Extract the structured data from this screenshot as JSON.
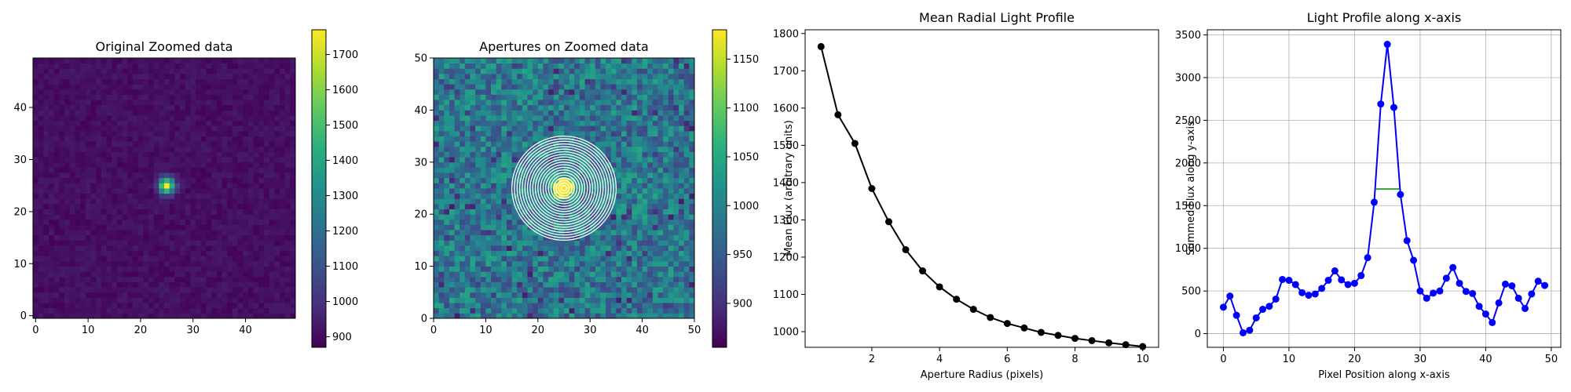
{
  "chart_data": [
    {
      "type": "heatmap",
      "title": "Original Zoomed data",
      "xlabel": "",
      "ylabel": "",
      "xlim": [
        -0.5,
        49.5
      ],
      "ylim": [
        -0.5,
        49.5
      ],
      "xticks": [
        0,
        10,
        20,
        30,
        40
      ],
      "yticks": [
        0,
        10,
        20,
        30,
        40
      ],
      "grid": false,
      "colormap": "viridis",
      "source_center": [
        25,
        25
      ],
      "source_peak": 1765,
      "background_level": 905,
      "colorbar": {
        "vmin": 870,
        "vmax": 1770,
        "ticks": [
          900,
          1000,
          1100,
          1200,
          1300,
          1400,
          1500,
          1600,
          1700
        ]
      }
    },
    {
      "type": "heatmap",
      "title": "Apertures on Zoomed data",
      "xlabel": "",
      "ylabel": "",
      "xlim": [
        0,
        50
      ],
      "ylim": [
        0,
        50
      ],
      "xticks": [
        0,
        10,
        20,
        30,
        40,
        50
      ],
      "yticks": [
        0,
        10,
        20,
        30,
        40,
        50
      ],
      "grid": false,
      "colormap": "viridis",
      "aperture_center": [
        25,
        25
      ],
      "aperture_radii": [
        0.5,
        1,
        1.5,
        2,
        2.5,
        3,
        3.5,
        4,
        4.5,
        5,
        5.5,
        6,
        6.5,
        7,
        7.5,
        8,
        8.5,
        9,
        9.5,
        10
      ],
      "colorbar": {
        "vmin": 855,
        "vmax": 1180,
        "ticks": [
          900,
          950,
          1000,
          1050,
          1100,
          1150
        ]
      }
    },
    {
      "type": "line",
      "title": "Mean Radial Light Profile",
      "xlabel": "Aperture Radius (pixels)",
      "ylabel": "Mean Flux (arbitrary units)",
      "x": [
        0.5,
        1,
        1.5,
        2,
        2.5,
        3,
        3.5,
        4,
        4.5,
        5,
        5.5,
        6,
        6.5,
        7,
        7.5,
        8,
        8.5,
        9,
        9.5,
        10
      ],
      "y": [
        1765,
        1582,
        1505,
        1384,
        1295,
        1220,
        1163,
        1120,
        1087,
        1060,
        1038,
        1022,
        1010,
        998,
        990,
        982,
        976,
        970,
        965,
        960
      ],
      "xlim": [
        0.03,
        10.47
      ],
      "ylim": [
        958,
        1810
      ],
      "xticks": [
        2,
        4,
        6,
        8,
        10
      ],
      "yticks": [
        1000,
        1100,
        1200,
        1300,
        1400,
        1500,
        1600,
        1700,
        1800
      ],
      "grid": false,
      "color": "#000000"
    },
    {
      "type": "line",
      "title": "Light Profile along x-axis",
      "xlabel": "Pixel Position along x-axis",
      "ylabel": "Summed Flux along y-axis",
      "x": [
        0,
        1,
        2,
        3,
        4,
        5,
        6,
        7,
        8,
        9,
        10,
        11,
        12,
        13,
        14,
        15,
        16,
        17,
        18,
        19,
        20,
        21,
        22,
        23,
        24,
        25,
        26,
        27,
        28,
        29,
        30,
        31,
        32,
        33,
        34,
        35,
        36,
        37,
        38,
        39,
        40,
        41,
        42,
        43,
        44,
        45,
        46,
        47,
        48,
        49
      ],
      "y": [
        310,
        440,
        215,
        10,
        40,
        185,
        285,
        320,
        405,
        635,
        625,
        575,
        480,
        450,
        465,
        530,
        625,
        735,
        630,
        575,
        590,
        680,
        890,
        1540,
        2690,
        3390,
        2650,
        1630,
        1090,
        860,
        500,
        415,
        475,
        500,
        650,
        775,
        590,
        495,
        470,
        320,
        230,
        130,
        360,
        580,
        560,
        415,
        295,
        465,
        615,
        565
      ],
      "xlim": [
        -2.45,
        51.45
      ],
      "ylim": [
        -160,
        3560
      ],
      "xticks": [
        0,
        10,
        20,
        30,
        40,
        50
      ],
      "yticks": [
        0,
        500,
        1000,
        1500,
        2000,
        2500,
        3000,
        3500
      ],
      "grid": true,
      "color": "#0000ff",
      "fwhm_line": {
        "x": [
          23.2,
          26.8
        ],
        "y": 1695,
        "color": "#2ca02c"
      }
    }
  ]
}
